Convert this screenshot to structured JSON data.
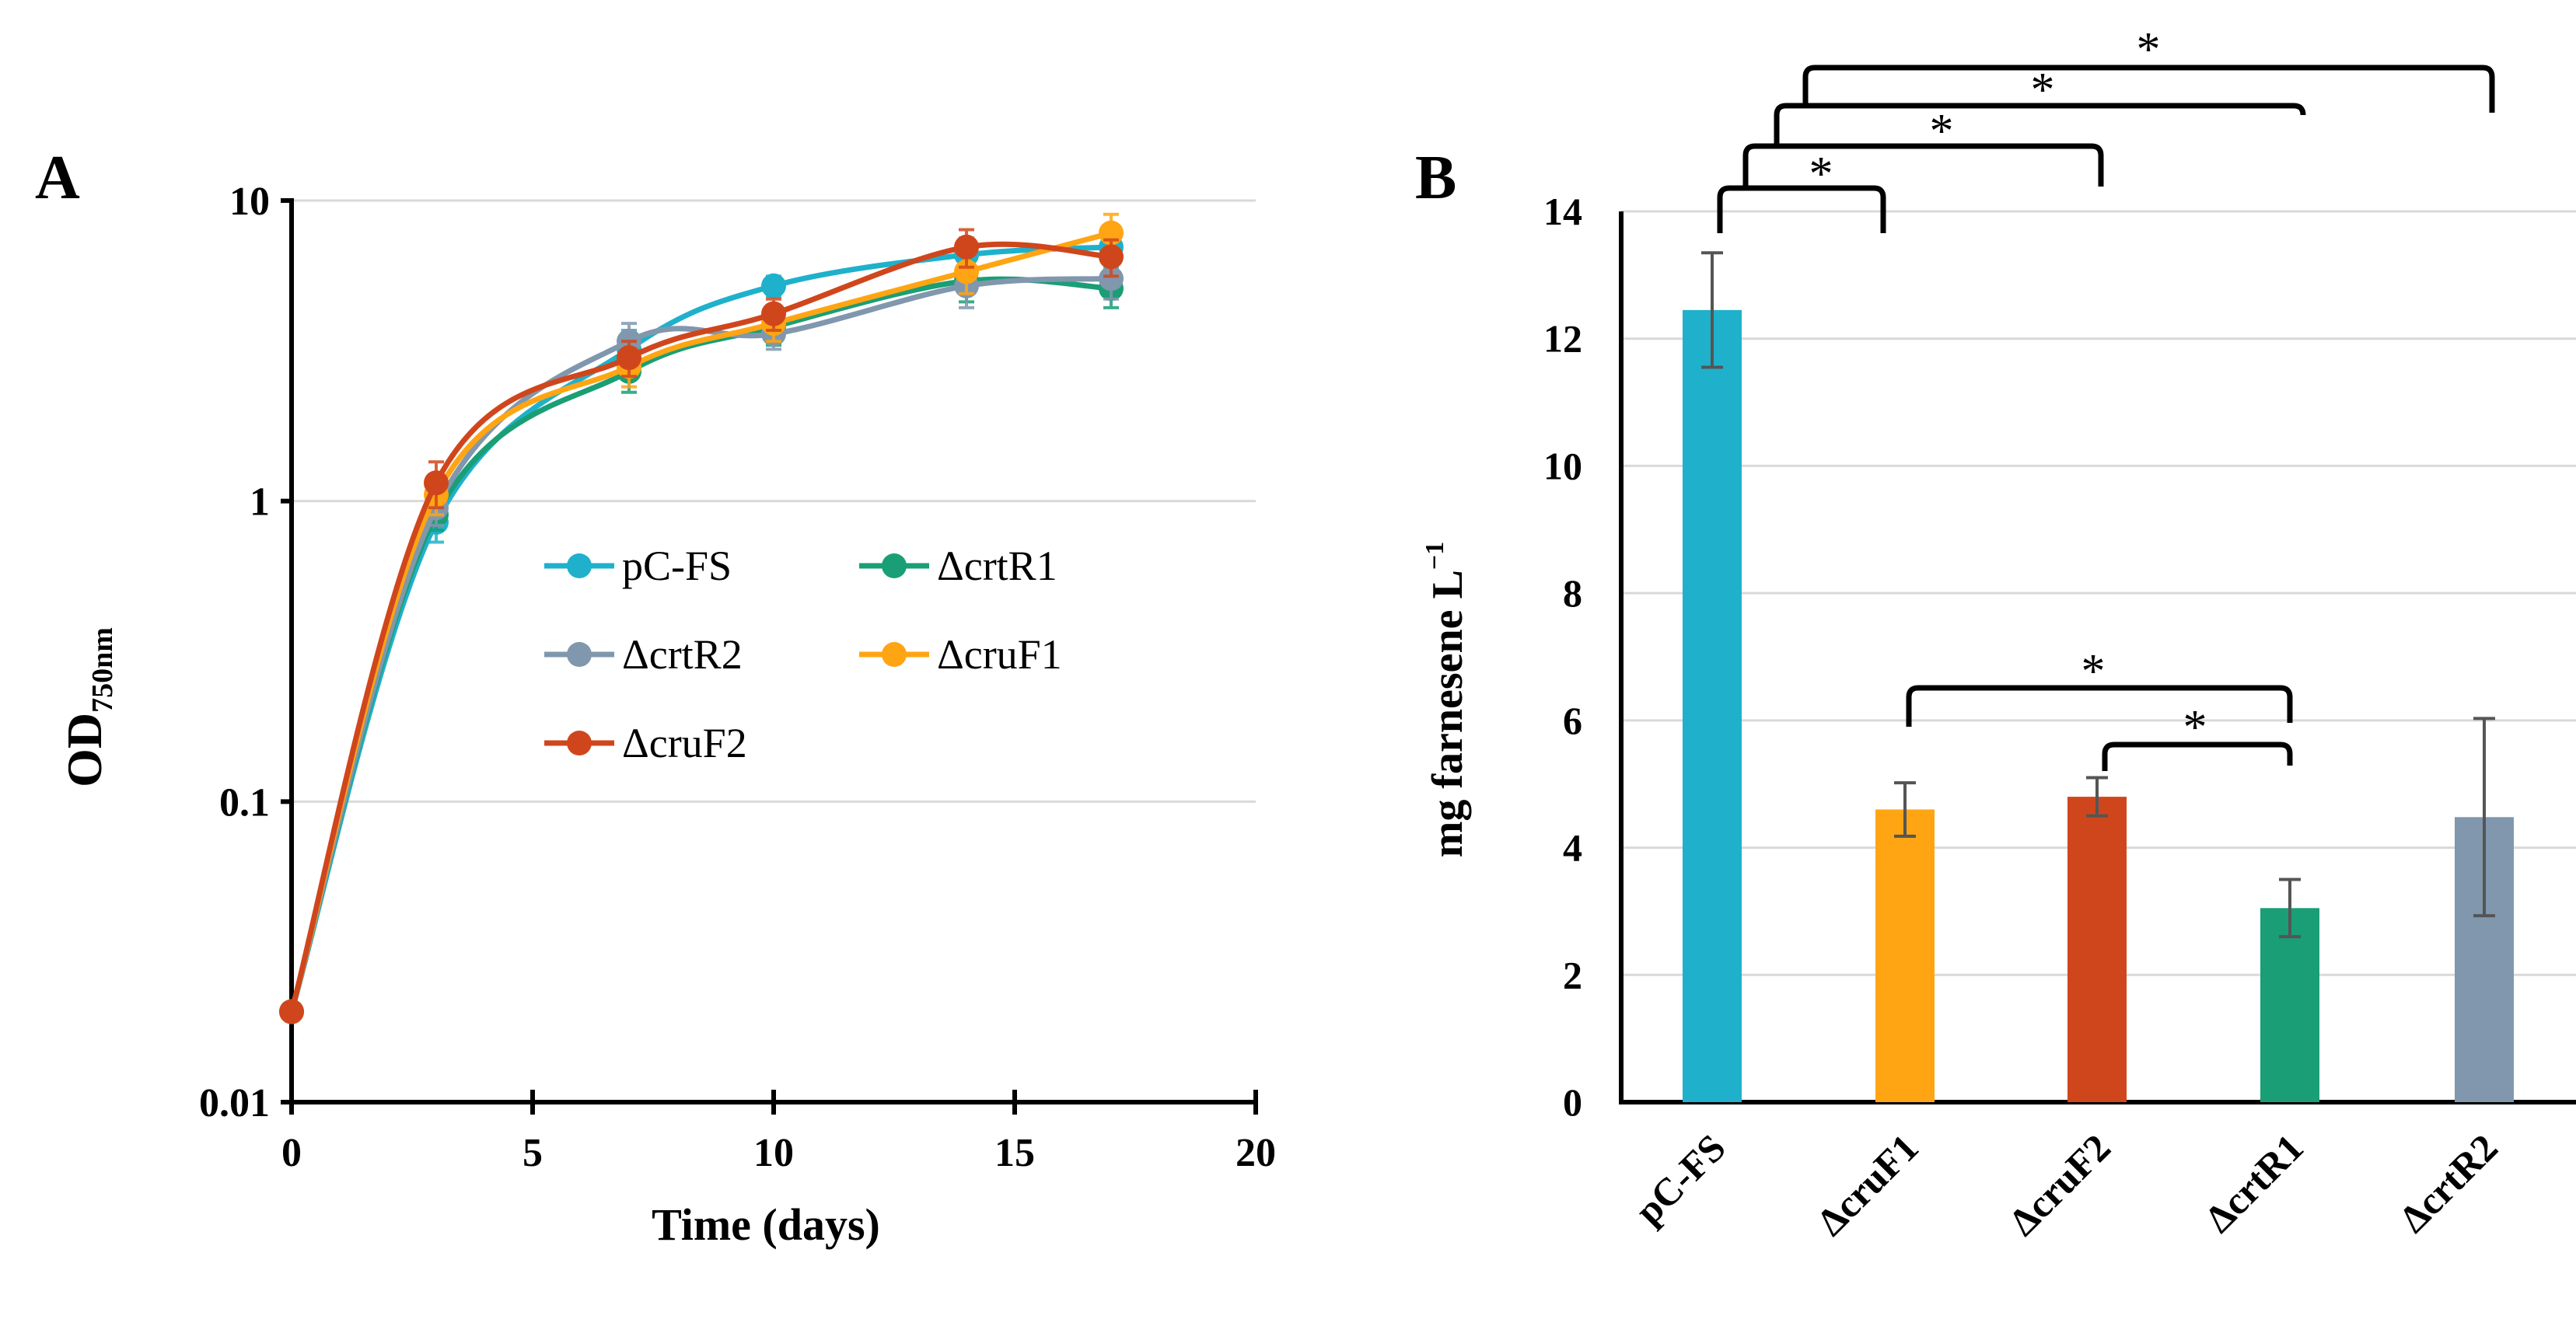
{
  "chart_data": [
    {
      "panel": "A",
      "type": "line",
      "xlabel": "Time (days)",
      "ylabel_main": "OD",
      "ylabel_sub": "750nm",
      "x_ticks": [
        0,
        5,
        10,
        15,
        20
      ],
      "y_scale": "log",
      "y_ticks": [
        0.01,
        0.1,
        1,
        10
      ],
      "y_tick_labels": [
        "0.01",
        "0.1",
        "1",
        "10"
      ],
      "xlim": [
        0,
        20
      ],
      "ylim": [
        0.01,
        10
      ],
      "grid": true,
      "x": [
        0,
        3,
        7,
        10,
        14,
        17
      ],
      "series": [
        {
          "name": "pC-FS",
          "color": "#1fb1cb",
          "values": [
            0.02,
            0.85,
            3.2,
            5.2,
            6.6,
            7.0
          ],
          "errors": [
            0,
            0.12,
            0.5,
            0.4,
            0.9,
            1.0
          ]
        },
        {
          "name": "ΔcrtR1",
          "color": "#1a9e75",
          "values": [
            0.02,
            0.9,
            2.7,
            3.8,
            5.4,
            5.1
          ],
          "errors": [
            0,
            0.1,
            0.4,
            0.5,
            0.8,
            0.7
          ]
        },
        {
          "name": "ΔcrtR2",
          "color": "#8097ad",
          "values": [
            0.02,
            0.95,
            3.4,
            3.6,
            5.2,
            5.5
          ],
          "errors": [
            0,
            0.12,
            0.5,
            0.4,
            0.8,
            0.8
          ]
        },
        {
          "name": "ΔcruF1",
          "color": "#ffa514",
          "values": [
            0.02,
            1.05,
            2.8,
            3.9,
            5.8,
            7.8
          ],
          "errors": [
            0,
            0.15,
            0.4,
            0.5,
            0.9,
            1.2
          ]
        },
        {
          "name": "ΔcruF2",
          "color": "#d0461c",
          "values": [
            0.02,
            1.15,
            3.0,
            4.2,
            7.0,
            6.5
          ],
          "errors": [
            0,
            0.2,
            0.4,
            0.5,
            1.0,
            0.9
          ]
        }
      ],
      "legend_order": [
        "pC-FS",
        "ΔcrtR1",
        "ΔcrtR2",
        "ΔcruF1",
        "ΔcruF2"
      ]
    },
    {
      "panel": "B",
      "type": "bar",
      "ylabel": "mg farnesene L",
      "ylabel_sup": "−1",
      "ylim": [
        0,
        14
      ],
      "y_ticks": [
        0,
        2,
        4,
        6,
        8,
        10,
        12,
        14
      ],
      "grid": true,
      "categories": [
        "pC-FS",
        "ΔcruF1",
        "ΔcruF2",
        "ΔcrtR1",
        "ΔcrtR2"
      ],
      "values": [
        12.45,
        4.6,
        4.8,
        3.05,
        4.48
      ],
      "errors": [
        0.9,
        0.42,
        0.3,
        0.45,
        1.55
      ],
      "colors": [
        "#1fb1cb",
        "#ffa514",
        "#d0461c",
        "#1a9e75",
        "#8097ad"
      ],
      "significance": [
        {
          "from": "pC-FS",
          "to": "ΔcruF1",
          "label": "*"
        },
        {
          "from": "pC-FS",
          "to": "ΔcruF2",
          "label": "*"
        },
        {
          "from": "pC-FS",
          "to": "ΔcrtR1",
          "label": "*"
        },
        {
          "from": "pC-FS",
          "to": "ΔcrtR2",
          "label": "*"
        },
        {
          "from": "ΔcruF1",
          "to": "ΔcrtR1",
          "label": "*"
        },
        {
          "from": "ΔcruF2",
          "to": "ΔcrtR1",
          "label": "*"
        }
      ]
    }
  ]
}
